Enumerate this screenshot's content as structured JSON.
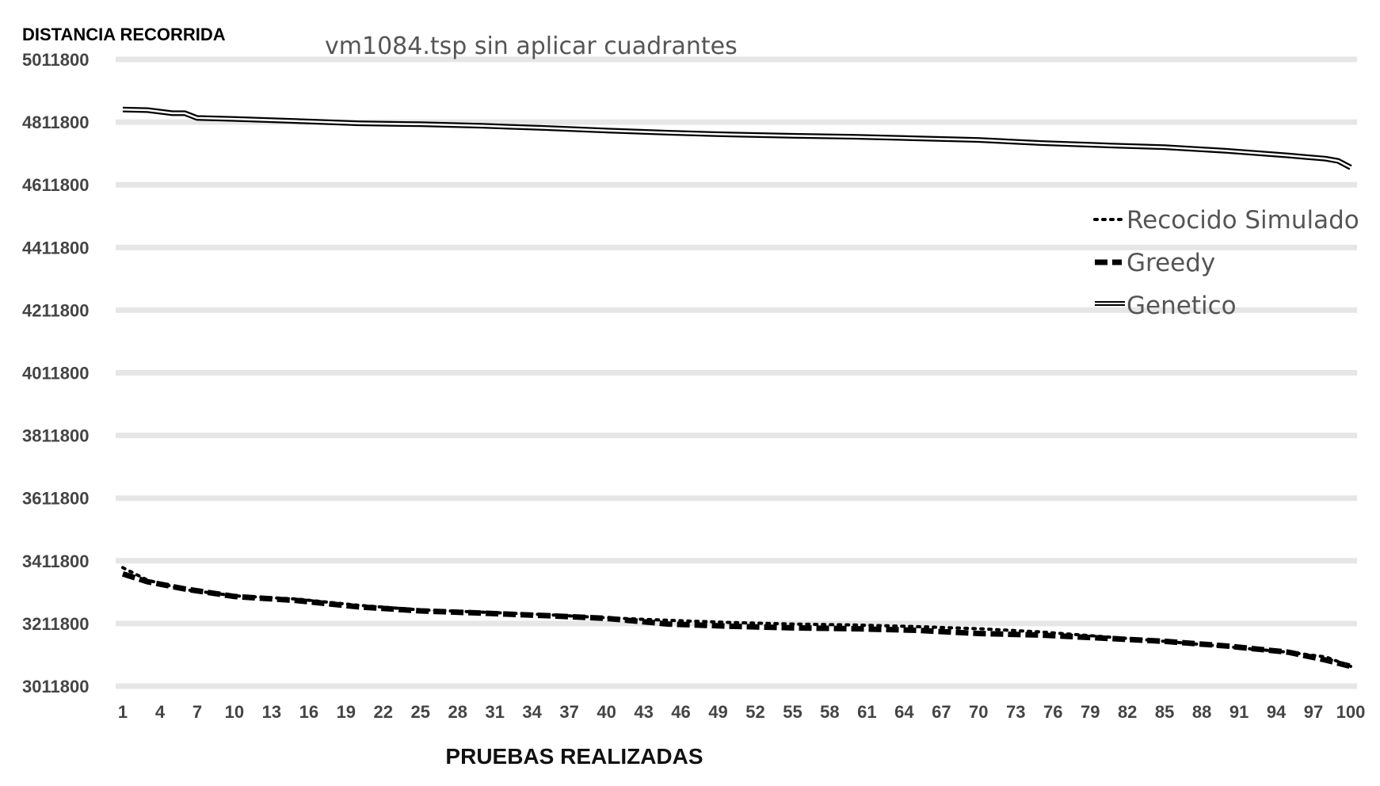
{
  "chart_data": {
    "type": "line",
    "title": "vm1084.tsp sin aplicar cuadrantes",
    "ylabel": "DISTANCIA RECORRIDA",
    "xlabel": "PRUEBAS REALIZADAS",
    "ylim": [
      3011800,
      5011800
    ],
    "yticks": [
      3011800,
      3211800,
      3411800,
      3611800,
      3811800,
      4011800,
      4211800,
      4411800,
      4611800,
      4811800,
      5011800
    ],
    "xlim": [
      1,
      100
    ],
    "xticks": [
      1,
      4,
      7,
      10,
      13,
      16,
      19,
      22,
      25,
      28,
      31,
      34,
      37,
      40,
      43,
      46,
      49,
      52,
      55,
      58,
      61,
      64,
      67,
      70,
      73,
      76,
      79,
      82,
      85,
      88,
      91,
      94,
      97,
      100
    ],
    "grid": "horizontal",
    "legend_position": "right",
    "colors": {
      "line": "#000000",
      "grid": "#e6e6e6",
      "text": "#444444"
    },
    "series": [
      {
        "name": "Recocido Simulado",
        "style": "dotted",
        "x": [
          1,
          3,
          6,
          10,
          15,
          20,
          25,
          30,
          35,
          40,
          45,
          50,
          55,
          60,
          65,
          70,
          75,
          80,
          85,
          90,
          95,
          98,
          100
        ],
        "values": [
          3390000,
          3350000,
          3320000,
          3300000,
          3290000,
          3270000,
          3255000,
          3248000,
          3240000,
          3230000,
          3222000,
          3215000,
          3210000,
          3207000,
          3202000,
          3195000,
          3185000,
          3170000,
          3155000,
          3138000,
          3120000,
          3105000,
          3075000
        ]
      },
      {
        "name": "Greedy",
        "style": "dashed",
        "x": [
          1,
          3,
          6,
          10,
          15,
          20,
          25,
          30,
          35,
          40,
          45,
          50,
          55,
          60,
          65,
          70,
          75,
          80,
          85,
          90,
          95,
          98,
          100
        ],
        "values": [
          3370000,
          3345000,
          3322000,
          3298000,
          3285000,
          3265000,
          3252000,
          3245000,
          3237000,
          3228000,
          3210000,
          3203000,
          3198000,
          3195000,
          3190000,
          3180000,
          3175000,
          3165000,
          3155000,
          3140000,
          3120000,
          3095000,
          3075000
        ]
      },
      {
        "name": "Genetico",
        "style": "double",
        "x": [
          1,
          3,
          5,
          6,
          7,
          10,
          15,
          20,
          25,
          30,
          35,
          40,
          45,
          50,
          55,
          60,
          65,
          70,
          75,
          80,
          85,
          90,
          95,
          98,
          99,
          100
        ],
        "values": [
          4852000,
          4850000,
          4840000,
          4840000,
          4825000,
          4822000,
          4815000,
          4808000,
          4805000,
          4800000,
          4793000,
          4785000,
          4778000,
          4772000,
          4768000,
          4765000,
          4760000,
          4755000,
          4745000,
          4738000,
          4732000,
          4720000,
          4705000,
          4695000,
          4688000,
          4667000
        ]
      }
    ]
  }
}
